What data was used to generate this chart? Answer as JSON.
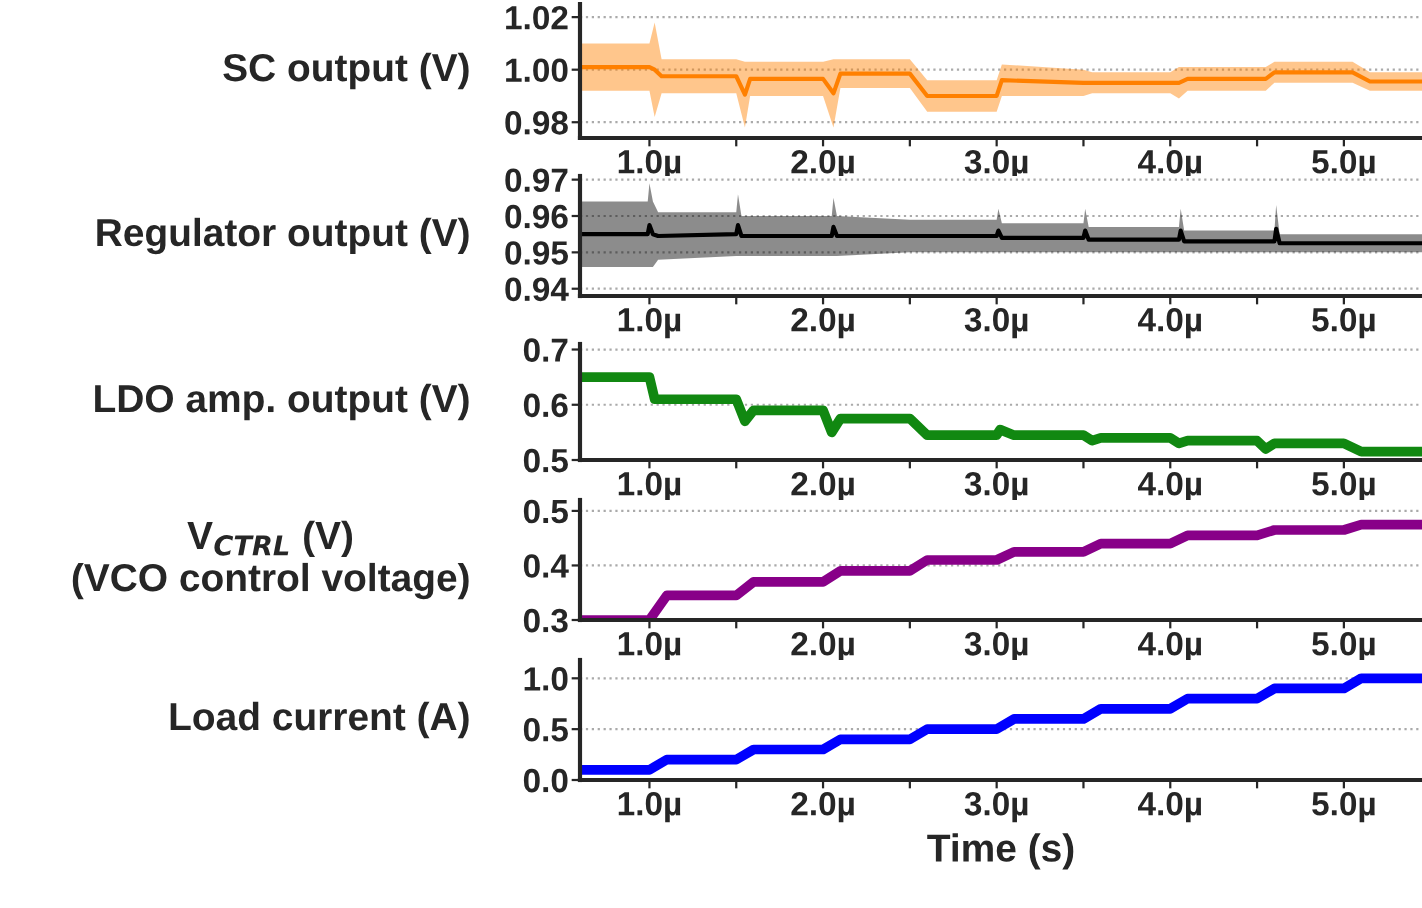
{
  "chart_data": [
    {
      "type": "line",
      "ylabel": "SC output (V)",
      "xlim": [
        0.6,
        5.45
      ],
      "ylim": [
        0.974,
        1.025
      ],
      "yticks": [
        {
          "value": 0.98,
          "label": "0.98"
        },
        {
          "value": 1.0,
          "label": "1.00"
        },
        {
          "value": 1.02,
          "label": "1.02"
        }
      ],
      "grid": "y",
      "xticks": [
        {
          "value": 1.0,
          "label": "1.0µ"
        },
        {
          "value": 1.5,
          "label": null
        },
        {
          "value": 2.0,
          "label": "2.0µ"
        },
        {
          "value": 2.5,
          "label": null
        },
        {
          "value": 3.0,
          "label": "3.0µ"
        },
        {
          "value": 3.5,
          "label": null
        },
        {
          "value": 4.0,
          "label": "4.0µ"
        },
        {
          "value": 4.5,
          "label": null
        },
        {
          "value": 5.0,
          "label": "5.0µ"
        }
      ],
      "x": [
        0.6,
        1.0,
        1.03,
        1.07,
        1.5,
        1.55,
        1.58,
        2.0,
        2.06,
        2.1,
        2.5,
        2.6,
        3.0,
        3.03,
        3.5,
        3.55,
        4.0,
        4.05,
        4.1,
        4.55,
        4.6,
        5.05,
        5.15,
        5.45
      ],
      "series": [
        {
          "color": "#ff8000",
          "values": [
            1.001,
            1.001,
            1.0,
            0.9975,
            0.9975,
            0.9905,
            0.9965,
            0.9965,
            0.991,
            0.9985,
            0.9985,
            0.99,
            0.99,
            0.996,
            0.995,
            0.995,
            0.995,
            0.995,
            0.9965,
            0.9965,
            0.999,
            0.999,
            0.9955,
            0.9955
          ],
          "lower": [
            0.992,
            0.992,
            0.982,
            0.991,
            0.991,
            0.978,
            0.99,
            0.99,
            0.978,
            0.993,
            0.993,
            0.984,
            0.984,
            0.99,
            0.99,
            0.991,
            0.991,
            0.989,
            0.992,
            0.992,
            0.995,
            0.995,
            0.992,
            0.992
          ],
          "upper": [
            1.01,
            1.01,
            1.018,
            1.004,
            1.004,
            1.003,
            1.003,
            1.003,
            1.004,
            1.004,
            1.004,
            0.996,
            0.996,
            1.002,
            1.0,
            0.999,
            0.999,
            1.001,
            1.001,
            1.001,
            1.003,
            1.003,
            0.999,
            0.999
          ]
        }
      ]
    },
    {
      "type": "line",
      "ylabel": "Regulator output (V)",
      "xlim": [
        0.6,
        5.45
      ],
      "ylim": [
        0.938,
        0.971
      ],
      "yticks": [
        0.94,
        0.95,
        0.96,
        0.97
      ],
      "grid": "y",
      "xticks": [
        {
          "value": 1.0,
          "label": "1.0µ"
        },
        {
          "value": 1.5,
          "label": null
        },
        {
          "value": 2.0,
          "label": "2.0µ"
        },
        {
          "value": 2.5,
          "label": null
        },
        {
          "value": 3.0,
          "label": "3.0µ"
        },
        {
          "value": 3.5,
          "label": null
        },
        {
          "value": 4.0,
          "label": "4.0µ"
        },
        {
          "value": 4.5,
          "label": null
        },
        {
          "value": 5.0,
          "label": "5.0µ"
        }
      ],
      "x": [
        0.6,
        0.99,
        1.0,
        1.02,
        1.05,
        1.5,
        1.51,
        1.53,
        2.05,
        2.06,
        2.08,
        2.5,
        3.0,
        3.01,
        3.03,
        3.5,
        3.51,
        3.53,
        4.05,
        4.06,
        4.08,
        4.6,
        4.61,
        4.63,
        5.45
      ],
      "series": [
        {
          "color": "#000000",
          "values": [
            0.955,
            0.955,
            0.9575,
            0.955,
            0.9545,
            0.955,
            0.9575,
            0.9545,
            0.9545,
            0.957,
            0.9545,
            0.9545,
            0.9545,
            0.956,
            0.954,
            0.954,
            0.956,
            0.9535,
            0.9535,
            0.956,
            0.953,
            0.953,
            0.9565,
            0.9525,
            0.9525
          ],
          "lower": [
            0.946,
            0.946,
            0.946,
            0.946,
            0.948,
            0.949,
            0.949,
            0.949,
            0.949,
            0.949,
            0.949,
            0.95,
            0.95,
            0.95,
            0.95,
            0.95,
            0.95,
            0.95,
            0.95,
            0.95,
            0.95,
            0.95,
            0.95,
            0.95,
            0.95
          ],
          "upper": [
            0.964,
            0.964,
            0.969,
            0.964,
            0.961,
            0.961,
            0.966,
            0.96,
            0.96,
            0.965,
            0.96,
            0.959,
            0.959,
            0.962,
            0.958,
            0.958,
            0.962,
            0.957,
            0.957,
            0.962,
            0.956,
            0.956,
            0.963,
            0.955,
            0.955
          ]
        }
      ]
    },
    {
      "type": "line",
      "ylabel": "LDO amp. output (V)",
      "xlim": [
        0.6,
        5.45
      ],
      "ylim": [
        0.5,
        0.71
      ],
      "yticks": [
        0.5,
        0.6,
        0.7
      ],
      "grid": "y",
      "xticks": [
        {
          "value": 1.0,
          "label": "1.0µ"
        },
        {
          "value": 1.5,
          "label": null
        },
        {
          "value": 2.0,
          "label": "2.0µ"
        },
        {
          "value": 2.5,
          "label": null
        },
        {
          "value": 3.0,
          "label": "3.0µ"
        },
        {
          "value": 3.5,
          "label": null
        },
        {
          "value": 4.0,
          "label": "4.0µ"
        },
        {
          "value": 4.5,
          "label": null
        },
        {
          "value": 5.0,
          "label": "5.0µ"
        }
      ],
      "x": [
        0.6,
        1.0,
        1.03,
        1.1,
        1.5,
        1.55,
        1.6,
        2.0,
        2.05,
        2.1,
        2.5,
        2.6,
        3.0,
        3.02,
        3.1,
        3.5,
        3.55,
        3.6,
        4.0,
        4.05,
        4.1,
        4.5,
        4.55,
        4.6,
        5.0,
        5.1,
        5.45
      ],
      "series": [
        {
          "color": "#118811",
          "values": [
            0.65,
            0.65,
            0.61,
            0.61,
            0.61,
            0.57,
            0.59,
            0.59,
            0.55,
            0.575,
            0.575,
            0.545,
            0.545,
            0.555,
            0.545,
            0.545,
            0.535,
            0.54,
            0.54,
            0.53,
            0.535,
            0.535,
            0.52,
            0.53,
            0.53,
            0.515,
            0.515
          ]
        }
      ]
    },
    {
      "type": "line",
      "ylabel": "V$_{CTRL}$ (V)\n(VCO control voltage)",
      "xlim": [
        0.6,
        5.45
      ],
      "ylim": [
        0.3,
        0.52
      ],
      "yticks": [
        0.3,
        0.4,
        0.5
      ],
      "grid": "y",
      "xticks": [
        {
          "value": 1.0,
          "label": "1.0µ"
        },
        {
          "value": 1.5,
          "label": null
        },
        {
          "value": 2.0,
          "label": "2.0µ"
        },
        {
          "value": 2.5,
          "label": null
        },
        {
          "value": 3.0,
          "label": "3.0µ"
        },
        {
          "value": 3.5,
          "label": null
        },
        {
          "value": 4.0,
          "label": "4.0µ"
        },
        {
          "value": 4.5,
          "label": null
        },
        {
          "value": 5.0,
          "label": "5.0µ"
        }
      ],
      "x": [
        0.6,
        1.0,
        1.1,
        1.5,
        1.6,
        2.0,
        2.1,
        2.5,
        2.6,
        3.0,
        3.1,
        3.5,
        3.6,
        4.0,
        4.1,
        4.5,
        4.6,
        5.0,
        5.1,
        5.45
      ],
      "series": [
        {
          "color": "#880088",
          "values": [
            0.3,
            0.3,
            0.345,
            0.345,
            0.37,
            0.37,
            0.39,
            0.39,
            0.41,
            0.41,
            0.425,
            0.425,
            0.44,
            0.44,
            0.455,
            0.455,
            0.465,
            0.465,
            0.475,
            0.475
          ]
        }
      ]
    },
    {
      "type": "line",
      "ylabel": "Load current (A)",
      "xlabel": "Time (s)",
      "xlim": [
        0.6,
        5.45
      ],
      "ylim": [
        0.0,
        1.18
      ],
      "yticks": [
        {
          "value": 0.0,
          "label": "0.0"
        },
        0.5,
        {
          "value": 1.0,
          "label": "1.0"
        }
      ],
      "grid": "y",
      "xticks": [
        {
          "value": 1.0,
          "label": "1.0µ"
        },
        {
          "value": 1.5,
          "label": null
        },
        {
          "value": 2.0,
          "label": "2.0µ"
        },
        {
          "value": 2.5,
          "label": null
        },
        {
          "value": 3.0,
          "label": "3.0µ"
        },
        {
          "value": 3.5,
          "label": null
        },
        {
          "value": 4.0,
          "label": "4.0µ"
        },
        {
          "value": 4.5,
          "label": null
        },
        {
          "value": 5.0,
          "label": "5.0µ"
        }
      ],
      "x": [
        0.6,
        1.0,
        1.1,
        1.5,
        1.6,
        2.0,
        2.1,
        2.5,
        2.6,
        3.0,
        3.1,
        3.5,
        3.6,
        4.0,
        4.1,
        4.5,
        4.6,
        5.0,
        5.1,
        5.45
      ],
      "series": [
        {
          "color": "#0000ff",
          "values": [
            0.1,
            0.1,
            0.2,
            0.2,
            0.3,
            0.3,
            0.4,
            0.4,
            0.5,
            0.5,
            0.6,
            0.6,
            0.7,
            0.7,
            0.8,
            0.8,
            0.9,
            0.9,
            1.0,
            1.0
          ]
        }
      ]
    }
  ]
}
